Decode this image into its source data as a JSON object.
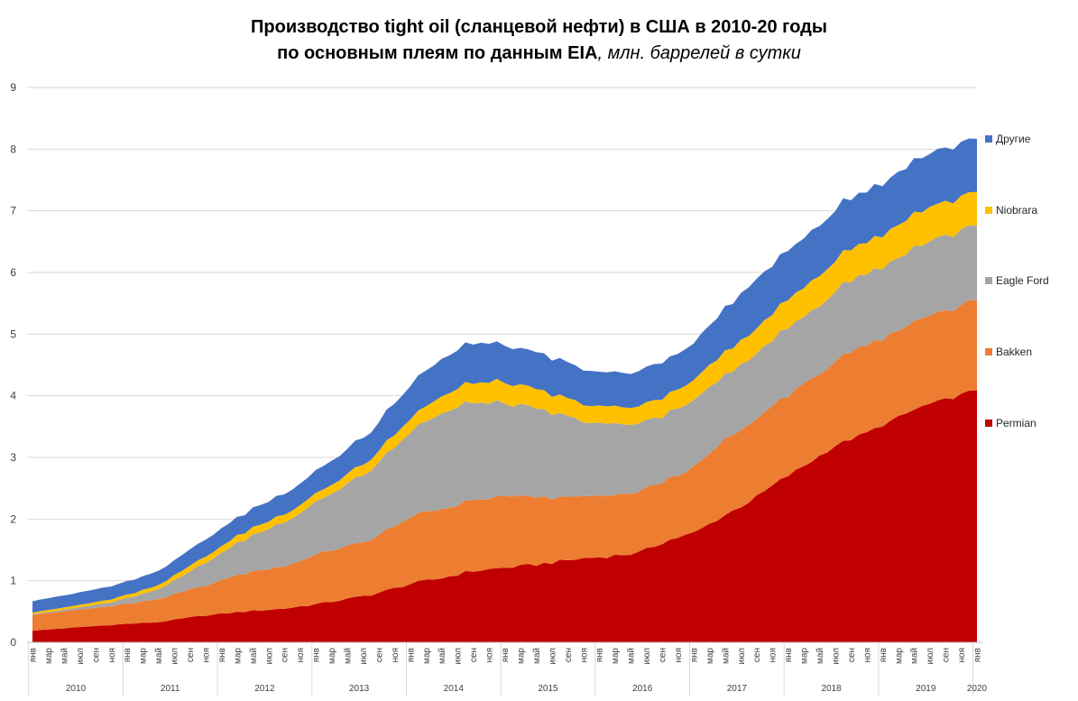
{
  "title": {
    "line1": "Производство tight oil (сланцевой нефти) в США в 2010-20 годы",
    "line2_bold": "по основным плеям по данным EIA",
    "line2_italic": ", млн. баррелей в сутки"
  },
  "chart_data": {
    "type": "area",
    "stacked": true,
    "title": "Производство tight oil (сланцевой нефти) в США в 2010-20 годы по основным плеям по данным EIA, млн. баррелей в сутки",
    "ylim": [
      0,
      9
    ],
    "yticks": [
      0,
      1,
      2,
      3,
      4,
      5,
      6,
      7,
      8,
      9
    ],
    "grid": true,
    "legend_position": "right",
    "month_labels": [
      "янв",
      "мар",
      "май",
      "июл",
      "сен",
      "ноя"
    ],
    "years": [
      "2010",
      "2011",
      "2012",
      "2013",
      "2014",
      "2015",
      "2016",
      "2017",
      "2018",
      "2019",
      "2020"
    ],
    "x_start": "2010-01",
    "x_end": "2020-01",
    "series": [
      {
        "name": "Permian",
        "color": "#C00000",
        "points": [
          [
            0,
            0.19
          ],
          [
            6,
            0.24
          ],
          [
            12,
            0.29
          ],
          [
            18,
            0.33
          ],
          [
            24,
            0.43
          ],
          [
            30,
            0.5
          ],
          [
            36,
            0.55
          ],
          [
            42,
            0.65
          ],
          [
            48,
            0.77
          ],
          [
            54,
            0.96
          ],
          [
            58,
            1.04
          ],
          [
            62,
            1.15
          ],
          [
            66,
            1.2
          ],
          [
            70,
            1.24
          ],
          [
            74,
            1.3
          ],
          [
            78,
            1.36
          ],
          [
            82,
            1.4
          ],
          [
            86,
            1.45
          ],
          [
            90,
            1.65
          ],
          [
            94,
            1.78
          ],
          [
            98,
            2.05
          ],
          [
            102,
            2.3
          ],
          [
            106,
            2.62
          ],
          [
            110,
            2.9
          ],
          [
            114,
            3.2
          ],
          [
            118,
            3.38
          ],
          [
            122,
            3.6
          ],
          [
            126,
            3.82
          ],
          [
            130,
            3.95
          ],
          [
            134,
            4.1
          ]
        ]
      },
      {
        "name": "Bakken",
        "color": "#ED7D31",
        "points": [
          [
            0,
            0.26
          ],
          [
            6,
            0.28
          ],
          [
            12,
            0.31
          ],
          [
            18,
            0.37
          ],
          [
            24,
            0.48
          ],
          [
            30,
            0.62
          ],
          [
            36,
            0.7
          ],
          [
            42,
            0.83
          ],
          [
            48,
            0.9
          ],
          [
            54,
            1.08
          ],
          [
            58,
            1.13
          ],
          [
            62,
            1.14
          ],
          [
            66,
            1.15
          ],
          [
            70,
            1.12
          ],
          [
            74,
            1.04
          ],
          [
            78,
            1.0
          ],
          [
            82,
            0.98
          ],
          [
            86,
            0.98
          ],
          [
            90,
            1.0
          ],
          [
            94,
            1.05
          ],
          [
            98,
            1.22
          ],
          [
            102,
            1.25
          ],
          [
            106,
            1.3
          ],
          [
            110,
            1.32
          ],
          [
            114,
            1.38
          ],
          [
            118,
            1.4
          ],
          [
            122,
            1.4
          ],
          [
            126,
            1.43
          ],
          [
            130,
            1.45
          ],
          [
            134,
            1.45
          ]
        ]
      },
      {
        "name": "Eagle Ford",
        "color": "#A5A5A5",
        "points": [
          [
            0,
            0.01
          ],
          [
            6,
            0.03
          ],
          [
            12,
            0.07
          ],
          [
            18,
            0.16
          ],
          [
            24,
            0.35
          ],
          [
            30,
            0.55
          ],
          [
            36,
            0.72
          ],
          [
            42,
            0.9
          ],
          [
            48,
            1.15
          ],
          [
            54,
            1.4
          ],
          [
            58,
            1.55
          ],
          [
            62,
            1.6
          ],
          [
            66,
            1.52
          ],
          [
            70,
            1.45
          ],
          [
            74,
            1.37
          ],
          [
            78,
            1.22
          ],
          [
            82,
            1.15
          ],
          [
            86,
            1.1
          ],
          [
            90,
            1.08
          ],
          [
            94,
            1.08
          ],
          [
            98,
            1.05
          ],
          [
            102,
            1.05
          ],
          [
            106,
            1.08
          ],
          [
            110,
            1.1
          ],
          [
            114,
            1.15
          ],
          [
            118,
            1.15
          ],
          [
            122,
            1.18
          ],
          [
            126,
            1.2
          ],
          [
            130,
            1.22
          ],
          [
            134,
            1.22
          ]
        ]
      },
      {
        "name": "Niobrara",
        "color": "#FFC000",
        "points": [
          [
            0,
            0.03
          ],
          [
            6,
            0.04
          ],
          [
            12,
            0.05
          ],
          [
            18,
            0.07
          ],
          [
            24,
            0.1
          ],
          [
            30,
            0.12
          ],
          [
            36,
            0.13
          ],
          [
            42,
            0.14
          ],
          [
            48,
            0.18
          ],
          [
            54,
            0.22
          ],
          [
            58,
            0.28
          ],
          [
            62,
            0.32
          ],
          [
            66,
            0.34
          ],
          [
            70,
            0.32
          ],
          [
            74,
            0.3
          ],
          [
            78,
            0.28
          ],
          [
            82,
            0.28
          ],
          [
            86,
            0.28
          ],
          [
            90,
            0.3
          ],
          [
            94,
            0.33
          ],
          [
            98,
            0.37
          ],
          [
            102,
            0.4
          ],
          [
            106,
            0.45
          ],
          [
            110,
            0.48
          ],
          [
            114,
            0.5
          ],
          [
            118,
            0.52
          ],
          [
            122,
            0.52
          ],
          [
            126,
            0.55
          ],
          [
            130,
            0.55
          ],
          [
            134,
            0.55
          ]
        ]
      },
      {
        "name": "Другие",
        "color": "#4472C4",
        "points": [
          [
            0,
            0.19
          ],
          [
            6,
            0.2
          ],
          [
            12,
            0.21
          ],
          [
            18,
            0.23
          ],
          [
            24,
            0.27
          ],
          [
            30,
            0.3
          ],
          [
            36,
            0.33
          ],
          [
            42,
            0.38
          ],
          [
            48,
            0.45
          ],
          [
            54,
            0.55
          ],
          [
            58,
            0.6
          ],
          [
            62,
            0.65
          ],
          [
            66,
            0.62
          ],
          [
            70,
            0.6
          ],
          [
            74,
            0.58
          ],
          [
            78,
            0.56
          ],
          [
            82,
            0.56
          ],
          [
            86,
            0.56
          ],
          [
            90,
            0.58
          ],
          [
            94,
            0.6
          ],
          [
            98,
            0.7
          ],
          [
            102,
            0.8
          ],
          [
            106,
            0.8
          ],
          [
            110,
            0.8
          ],
          [
            114,
            0.82
          ],
          [
            118,
            0.83
          ],
          [
            122,
            0.85
          ],
          [
            126,
            0.87
          ],
          [
            130,
            0.88
          ],
          [
            134,
            0.88
          ]
        ]
      }
    ]
  }
}
